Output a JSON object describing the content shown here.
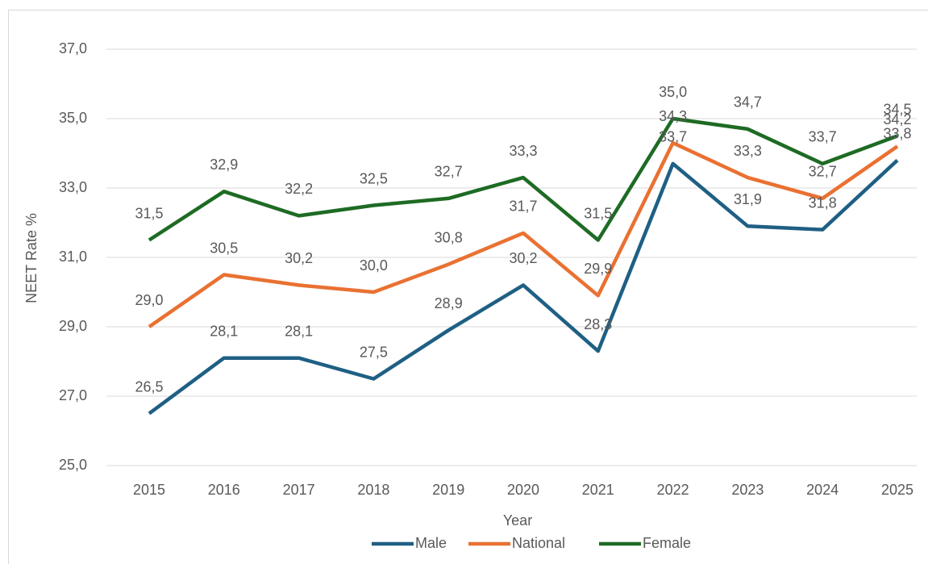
{
  "chart_data": {
    "type": "line",
    "x_label": "Year",
    "y_label": "NEET Rate %",
    "categories": [
      "2015",
      "2016",
      "2017",
      "2018",
      "2019",
      "2020",
      "2021",
      "2022",
      "2023",
      "2024",
      "2025"
    ],
    "series": [
      {
        "name": "Male",
        "color": "#1f5f84",
        "values": [
          26.5,
          28.1,
          28.1,
          27.5,
          28.9,
          30.2,
          28.3,
          33.7,
          31.9,
          31.8,
          33.8
        ],
        "value_labels": [
          "26,5",
          "28,1",
          "28,1",
          "27,5",
          "28,9",
          "30,2",
          "28,3",
          "33,7",
          "31,9",
          "31,8",
          "33,8"
        ]
      },
      {
        "name": "National",
        "color": "#e97132",
        "values": [
          29.0,
          30.5,
          30.2,
          30.0,
          30.8,
          31.7,
          29.9,
          34.3,
          33.3,
          32.7,
          34.2
        ],
        "value_labels": [
          "29,0",
          "30,5",
          "30,2",
          "30,0",
          "30,8",
          "31,7",
          "29,9",
          "34,3",
          "33,3",
          "32,7",
          "34,2"
        ]
      },
      {
        "name": "Female",
        "color": "#1e6b24",
        "values": [
          31.5,
          32.9,
          32.2,
          32.5,
          32.7,
          33.3,
          31.5,
          35.0,
          34.7,
          33.7,
          34.5
        ],
        "value_labels": [
          "31,5",
          "32,9",
          "32,2",
          "32,5",
          "32,7",
          "33,3",
          "31,5",
          "35,0",
          "34,7",
          "33,7",
          "34,5"
        ]
      }
    ],
    "ylim": [
      25,
      37
    ],
    "yticks": [
      {
        "value": 25,
        "label": "25,0"
      },
      {
        "value": 27,
        "label": "27,0"
      },
      {
        "value": 29,
        "label": "29,0"
      },
      {
        "value": 31,
        "label": "31,0"
      },
      {
        "value": 33,
        "label": "33,0"
      },
      {
        "value": 35,
        "label": "35,0"
      },
      {
        "value": 37,
        "label": "37,0"
      }
    ],
    "grid": true,
    "legend": "bottom"
  }
}
